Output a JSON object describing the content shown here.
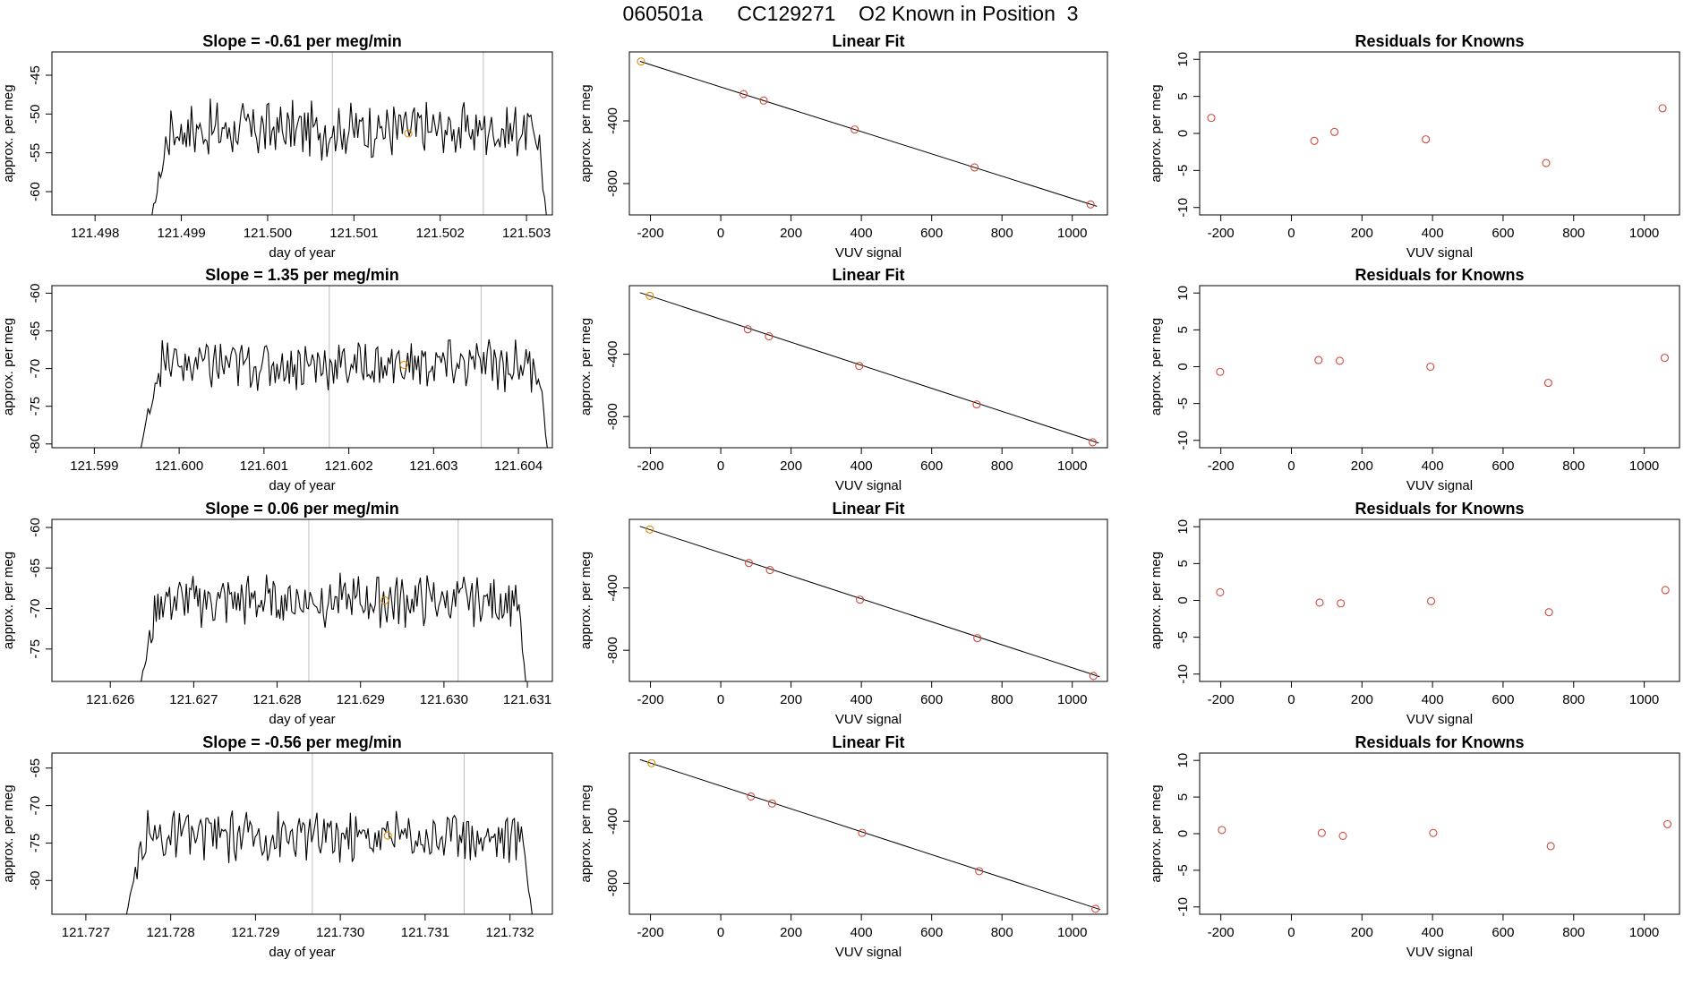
{
  "page": {
    "title": "060501a      CC129271    O2 Known in Position  3"
  },
  "colors": {
    "line": "#000000",
    "grid_vline": "#bebebe",
    "known_point": "#e08a00",
    "residual_point": "#d24a3c",
    "axis": "#000000"
  },
  "chart_data": [
    {
      "type": "line",
      "title": "Slope =  -0.61  per meg/min",
      "xlabel": "day of year",
      "ylabel": "approx. per meg",
      "xlim": [
        121.4975,
        121.5033
      ],
      "ylim": [
        -63,
        -42
      ],
      "xticks": [
        "121.498",
        "121.499",
        "121.500",
        "121.501",
        "121.502",
        "121.503"
      ],
      "yticks": [
        "-45",
        "-50",
        "-55",
        "-60"
      ],
      "vlines": [
        121.50075,
        121.5025
      ],
      "series": {
        "x_start": 121.49866,
        "x_end": 121.50323,
        "y_start": -63,
        "y_end": -63,
        "base": -52,
        "amplitude": 3
      },
      "highlight_point": {
        "x": 121.50163,
        "y": -52.5
      }
    },
    {
      "type": "scatter",
      "title": "Linear Fit",
      "xlabel": "VUV signal",
      "ylabel": "approx. per meg",
      "xlim": [
        -260,
        1100
      ],
      "ylim": [
        -1000,
        40
      ],
      "xticks": [
        "-200",
        "0",
        "200",
        "400",
        "600",
        "800",
        "1000"
      ],
      "yticks": [
        "-400",
        "-800"
      ],
      "points": [
        [
          -227,
          -21
        ],
        [
          65,
          -229
        ],
        [
          122,
          -270
        ],
        [
          381,
          -455
        ],
        [
          722,
          -697
        ],
        [
          1052,
          -933
        ]
      ],
      "highlight_index": 0,
      "fit_line": [
        [
          -230,
          -20
        ],
        [
          1070,
          -945
        ]
      ]
    },
    {
      "type": "scatter",
      "title": "Residuals for Knowns",
      "xlabel": "VUV signal",
      "ylabel": "approx. per meg",
      "xlim": [
        -260,
        1100
      ],
      "ylim": [
        -11,
        11
      ],
      "xticks": [
        "-200",
        "0",
        "200",
        "400",
        "600",
        "800",
        "1000"
      ],
      "yticks": [
        "10",
        "5",
        "0",
        "-5",
        "-10"
      ],
      "points": [
        [
          -227,
          2.1
        ],
        [
          65,
          -1.0
        ],
        [
          122,
          0.2
        ],
        [
          381,
          -0.8
        ],
        [
          722,
          -4.0
        ],
        [
          1052,
          3.4
        ]
      ]
    },
    {
      "type": "line",
      "title": "Slope =  1.35  per meg/min",
      "xlabel": "day of year",
      "ylabel": "approx. per meg",
      "xlim": [
        121.5985,
        121.6044
      ],
      "ylim": [
        -80.5,
        -59
      ],
      "xticks": [
        "121.599",
        "121.600",
        "121.601",
        "121.602",
        "121.603",
        "121.604"
      ],
      "yticks": [
        "-60",
        "-65",
        "-70",
        "-75",
        "-80"
      ],
      "vlines": [
        121.60177,
        121.60356
      ],
      "series": {
        "x_start": 121.59955,
        "x_end": 121.60434,
        "y_start": -80.5,
        "y_end": -80.5,
        "base": -69.5,
        "amplitude": 2.8
      },
      "highlight_point": {
        "x": 121.60265,
        "y": -69.5
      }
    },
    {
      "type": "scatter",
      "title": "Linear Fit",
      "xlabel": "VUV signal",
      "ylabel": "approx. per meg",
      "xlim": [
        -260,
        1100
      ],
      "ylim": [
        -1000,
        40
      ],
      "xticks": [
        "-200",
        "0",
        "200",
        "400",
        "600",
        "800",
        "1000"
      ],
      "yticks": [
        "-400",
        "-800"
      ],
      "points": [
        [
          -202,
          -25
        ],
        [
          77,
          -240
        ],
        [
          137,
          -285
        ],
        [
          394,
          -475
        ],
        [
          728,
          -722
        ],
        [
          1058,
          -965
        ]
      ],
      "highlight_index": 0,
      "fit_line": [
        [
          -230,
          -5
        ],
        [
          1075,
          -970
        ]
      ]
    },
    {
      "type": "scatter",
      "title": "Residuals for Knowns",
      "xlabel": "VUV signal",
      "ylabel": "approx. per meg",
      "xlim": [
        -260,
        1100
      ],
      "ylim": [
        -11,
        11
      ],
      "xticks": [
        "-200",
        "0",
        "200",
        "400",
        "600",
        "800",
        "1000"
      ],
      "yticks": [
        "10",
        "5",
        "0",
        "-5",
        "-10"
      ],
      "points": [
        [
          -202,
          -0.7
        ],
        [
          77,
          0.9
        ],
        [
          137,
          0.8
        ],
        [
          394,
          0.0
        ],
        [
          728,
          -2.2
        ],
        [
          1058,
          1.2
        ]
      ]
    },
    {
      "type": "line",
      "title": "Slope =  0.06  per meg/min",
      "xlabel": "day of year",
      "ylabel": "approx. per meg",
      "xlim": [
        121.6253,
        121.6313
      ],
      "ylim": [
        -79,
        -59
      ],
      "xticks": [
        "121.626",
        "121.627",
        "121.628",
        "121.629",
        "121.630",
        "121.631"
      ],
      "yticks": [
        "-60",
        "-65",
        "-70",
        "-75"
      ],
      "vlines": [
        121.62838,
        121.63017
      ],
      "series": {
        "x_start": 121.62637,
        "x_end": 121.63098,
        "y_start": -79,
        "y_end": -79,
        "base": -69,
        "amplitude": 2.6
      },
      "highlight_point": {
        "x": 121.62929,
        "y": -69
      }
    },
    {
      "type": "scatter",
      "title": "Linear Fit",
      "xlabel": "VUV signal",
      "ylabel": "approx. per meg",
      "xlim": [
        -260,
        1100
      ],
      "ylim": [
        -1000,
        40
      ],
      "xticks": [
        "-200",
        "0",
        "200",
        "400",
        "600",
        "800",
        "1000"
      ],
      "yticks": [
        "-400",
        "-800"
      ],
      "points": [
        [
          -202,
          -25
        ],
        [
          80,
          -240
        ],
        [
          140,
          -285
        ],
        [
          396,
          -475
        ],
        [
          730,
          -722
        ],
        [
          1060,
          -965
        ]
      ],
      "highlight_index": 0,
      "fit_line": [
        [
          -230,
          -5
        ],
        [
          1078,
          -970
        ]
      ]
    },
    {
      "type": "scatter",
      "title": "Residuals for Knowns",
      "xlabel": "VUV signal",
      "ylabel": "approx. per meg",
      "xlim": [
        -260,
        1100
      ],
      "ylim": [
        -11,
        11
      ],
      "xticks": [
        "-200",
        "0",
        "200",
        "400",
        "600",
        "800",
        "1000"
      ],
      "yticks": [
        "10",
        "5",
        "0",
        "-5",
        "-10"
      ],
      "points": [
        [
          -202,
          1.1
        ],
        [
          80,
          -0.3
        ],
        [
          140,
          -0.4
        ],
        [
          396,
          -0.1
        ],
        [
          730,
          -1.6
        ],
        [
          1060,
          1.4
        ]
      ]
    },
    {
      "type": "line",
      "title": "Slope =  -0.56  per meg/min",
      "xlabel": "day of year",
      "ylabel": "approx. per meg",
      "xlim": [
        121.7266,
        121.7325
      ],
      "ylim": [
        -84.5,
        -63
      ],
      "xticks": [
        "121.727",
        "121.728",
        "121.729",
        "121.730",
        "121.731",
        "121.732"
      ],
      "yticks": [
        "-65",
        "-70",
        "-75",
        "-80"
      ],
      "vlines": [
        121.72967,
        121.73146
      ],
      "series": {
        "x_start": 121.72748,
        "x_end": 121.73226,
        "y_start": -84.5,
        "y_end": -84.5,
        "base": -74,
        "amplitude": 2.8
      },
      "highlight_point": {
        "x": 121.73056,
        "y": -74
      }
    },
    {
      "type": "scatter",
      "title": "Linear Fit",
      "xlabel": "VUV signal",
      "ylabel": "approx. per meg",
      "xlim": [
        -260,
        1100
      ],
      "ylim": [
        -1000,
        40
      ],
      "xticks": [
        "-200",
        "0",
        "200",
        "400",
        "600",
        "800",
        "1000"
      ],
      "yticks": [
        "-400",
        "-800"
      ],
      "points": [
        [
          -197,
          -25
        ],
        [
          86,
          -240
        ],
        [
          146,
          -285
        ],
        [
          402,
          -475
        ],
        [
          735,
          -722
        ],
        [
          1066,
          -965
        ]
      ],
      "highlight_index": 0,
      "fit_line": [
        [
          -230,
          -2
        ],
        [
          1080,
          -970
        ]
      ]
    },
    {
      "type": "scatter",
      "title": "Residuals for Knowns",
      "xlabel": "VUV signal",
      "ylabel": "approx. per meg",
      "xlim": [
        -260,
        1100
      ],
      "ylim": [
        -11,
        11
      ],
      "xticks": [
        "-200",
        "0",
        "200",
        "400",
        "600",
        "800",
        "1000"
      ],
      "yticks": [
        "10",
        "5",
        "0",
        "-5",
        "-10"
      ],
      "points": [
        [
          -197,
          0.5
        ],
        [
          86,
          0.1
        ],
        [
          146,
          -0.3
        ],
        [
          402,
          0.1
        ],
        [
          735,
          -1.7
        ],
        [
          1066,
          1.3
        ]
      ]
    }
  ]
}
